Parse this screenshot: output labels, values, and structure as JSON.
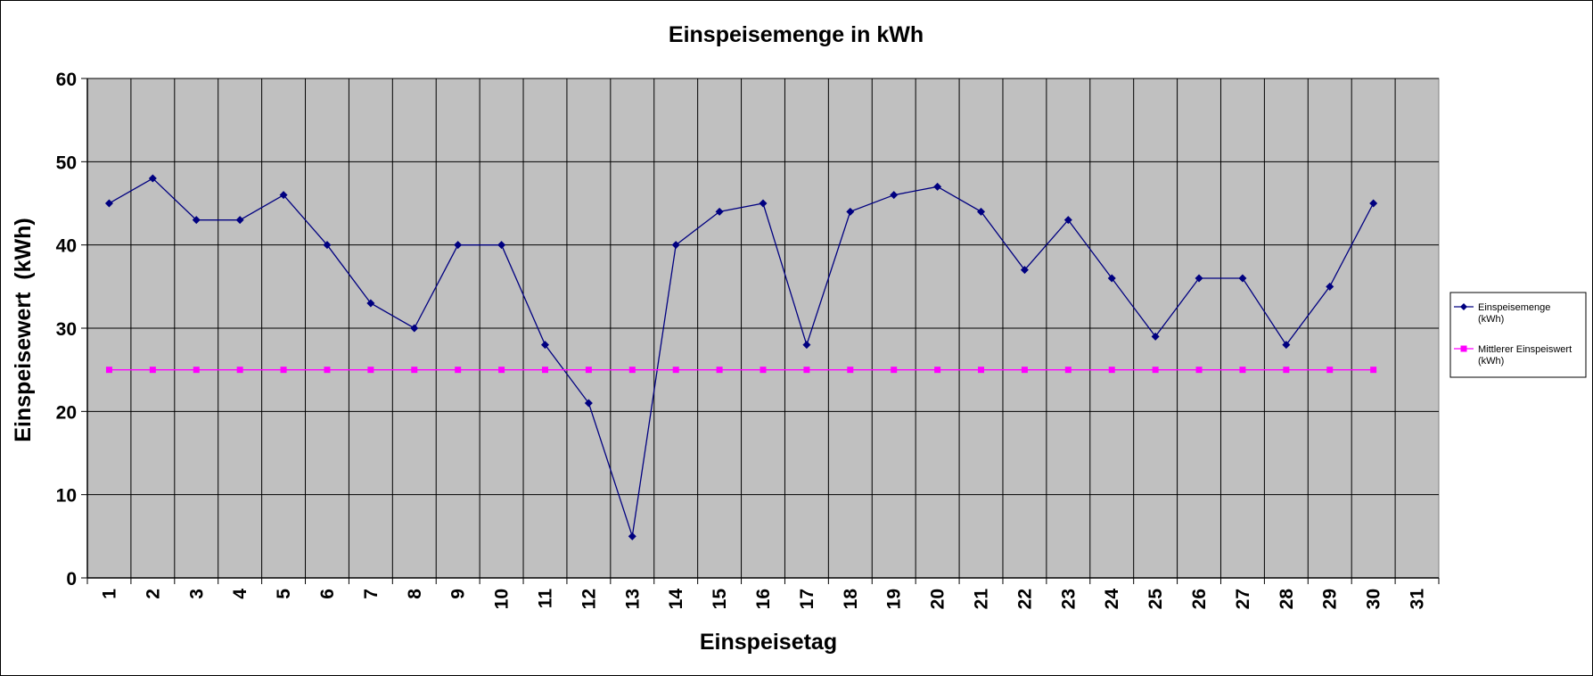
{
  "chart_data": {
    "type": "line",
    "title": "Einspeisemenge in kWh",
    "xlabel": "Einspeisetag",
    "ylabel": "Einspeisewert  (kWh)",
    "categories": [
      "1",
      "2",
      "3",
      "4",
      "5",
      "6",
      "7",
      "8",
      "9",
      "10",
      "11",
      "12",
      "13",
      "14",
      "15",
      "16",
      "17",
      "18",
      "19",
      "20",
      "21",
      "22",
      "23",
      "24",
      "25",
      "26",
      "27",
      "28",
      "29",
      "30",
      "31"
    ],
    "yticks": [
      "0",
      "10",
      "20",
      "30",
      "40",
      "50",
      "60"
    ],
    "ylim": [
      0,
      60
    ],
    "grid": true,
    "legend_position": "right",
    "series": [
      {
        "name": "Einspeisemenge (kWh)",
        "color": "#000080",
        "marker": "diamond",
        "values": [
          45,
          48,
          43,
          43,
          46,
          40,
          33,
          30,
          40,
          40,
          28,
          21,
          5,
          40,
          44,
          45,
          28,
          44,
          46,
          47,
          44,
          37,
          43,
          36,
          29,
          36,
          36,
          28,
          35,
          45,
          null
        ]
      },
      {
        "name": "Mittlerer Einspeiswert (kWh)",
        "color": "#ff00ff",
        "marker": "square",
        "values": [
          25,
          25,
          25,
          25,
          25,
          25,
          25,
          25,
          25,
          25,
          25,
          25,
          25,
          25,
          25,
          25,
          25,
          25,
          25,
          25,
          25,
          25,
          25,
          25,
          25,
          25,
          25,
          25,
          25,
          25,
          null
        ]
      }
    ],
    "legend": {
      "entries": [
        {
          "line1": "Einspeisemenge",
          "line2": "(kWh)"
        },
        {
          "line1": "Mittlerer Einspeiswert",
          "line2": "(kWh)"
        }
      ]
    },
    "colors": {
      "plot_background": "#c0c0c0",
      "grid": "#000000"
    }
  }
}
